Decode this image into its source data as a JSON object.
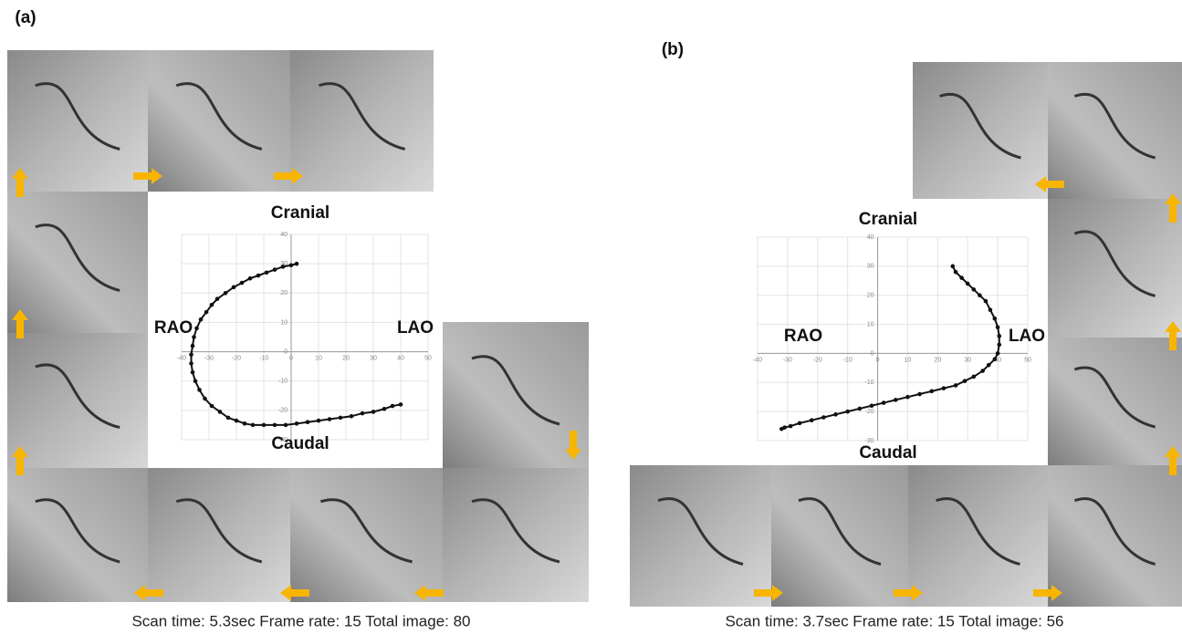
{
  "chart_data": [
    {
      "type": "line",
      "panel": "(a)",
      "top_label": "Cranial",
      "bottom_label": "Caudal",
      "left_label": "RAO",
      "right_label": "LAO",
      "caption": "Scan time: 5.3sec  Frame rate: 15  Total image: 80",
      "x": [
        2,
        0,
        -3,
        -6,
        -9,
        -12,
        -15,
        -18,
        -21,
        -24,
        -27,
        -29,
        -31,
        -33,
        -34.5,
        -35.5,
        -36,
        -36.5,
        -36.5,
        -36,
        -35,
        -33.5,
        -31.5,
        -29,
        -26,
        -23,
        -20,
        -17,
        -14,
        -10,
        -6,
        -2,
        2,
        6,
        10,
        14,
        18,
        22,
        26,
        30,
        34,
        37,
        40
      ],
      "y": [
        30,
        29.5,
        29,
        28,
        27,
        26,
        25,
        23.5,
        22,
        20,
        18,
        16,
        13.5,
        11,
        8,
        5,
        2,
        -1,
        -4,
        -7,
        -10,
        -13,
        -16,
        -18.5,
        -20.5,
        -22.5,
        -23.5,
        -24.5,
        -25,
        -25,
        -25,
        -25,
        -24.5,
        -24,
        -23.5,
        -23,
        -22.5,
        -22,
        -21,
        -20.5,
        -19.5,
        -18.5,
        -18
      ],
      "xlim": [
        -40,
        50
      ],
      "ylim": [
        -30,
        40
      ],
      "xticks": [
        -40,
        -30,
        -20,
        -10,
        0,
        10,
        20,
        30,
        40,
        50
      ],
      "yticks": [
        -30,
        -20,
        -10,
        0,
        10,
        20,
        30,
        40
      ],
      "grid": true,
      "color": "#111111"
    },
    {
      "type": "line",
      "panel": "(b)",
      "top_label": "Cranial",
      "bottom_label": "Caudal",
      "left_label": "RAO",
      "right_label": "LAO",
      "caption": "Scan time: 3.7sec  Frame rate: 15  Total image: 56",
      "x": [
        25,
        26,
        28,
        30,
        32,
        34,
        36,
        37.5,
        39,
        40,
        40.5,
        40.5,
        40,
        39,
        37,
        35,
        32,
        29,
        26,
        22,
        18,
        14,
        10,
        6,
        2,
        -2,
        -6,
        -10,
        -14,
        -18,
        -22,
        -26,
        -29,
        -31,
        -32
      ],
      "y": [
        30,
        28,
        26,
        24,
        22,
        20,
        18,
        15,
        12,
        9,
        6,
        3,
        0,
        -2,
        -4,
        -6,
        -8,
        -9.5,
        -11,
        -12,
        -13,
        -14,
        -15,
        -16,
        -17,
        -18,
        -19,
        -20,
        -21,
        -22,
        -23,
        -24,
        -25,
        -25.5,
        -26
      ],
      "xlim": [
        -40,
        50
      ],
      "ylim": [
        -30,
        40
      ],
      "xticks": [
        -40,
        -30,
        -20,
        -10,
        0,
        10,
        20,
        30,
        40,
        50
      ],
      "yticks": [
        -30,
        -20,
        -10,
        0,
        10,
        20,
        30,
        40
      ],
      "grid": true,
      "color": "#111111"
    }
  ]
}
